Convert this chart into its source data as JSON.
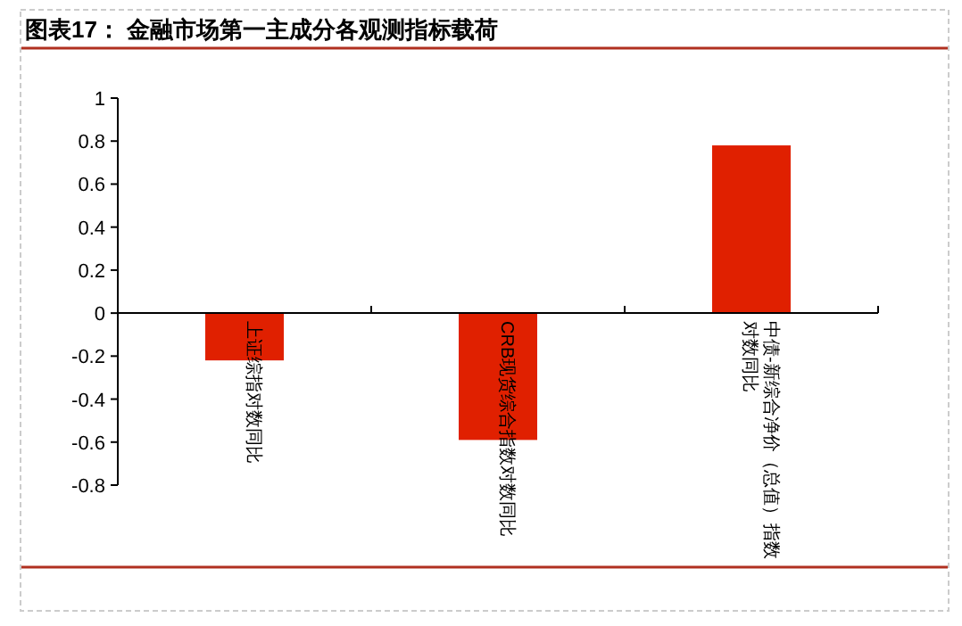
{
  "chart_data": {
    "type": "bar",
    "title": "图表17：  金融市场第一主成分各观测指标载荷",
    "categories": [
      "上证综指对数同比",
      "CRB现货综合指数对数同比",
      "中债-新综合净价（总值）指数对数同比"
    ],
    "values": [
      -0.22,
      -0.59,
      0.78
    ],
    "color": "#e02000",
    "ylim": [
      -0.8,
      1
    ],
    "yticks": [
      -0.8,
      -0.6,
      -0.4,
      -0.2,
      0,
      0.2,
      0.4,
      0.6,
      0.8,
      1
    ],
    "grid": false
  }
}
